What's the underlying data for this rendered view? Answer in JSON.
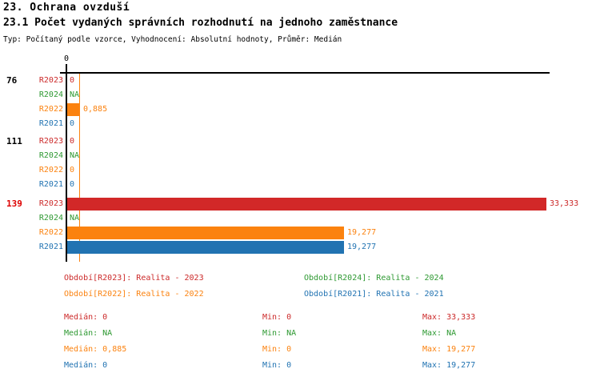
{
  "header": {
    "title": "23. Ochrana ovzduší",
    "subtitle": "23.1 Počet vydaných správních rozhodnutí na jednoho zaměstnance",
    "meta": "Typ: Počítaný podle vzorce, Vyhodnocení: Absolutní hodnoty, Průměr: Medián"
  },
  "colors": {
    "r2023": "#cc2a2a",
    "r2024": "#2e9932",
    "r2022": "#fb820f",
    "r2021": "#2173b2",
    "bar_r2023": "#d22828",
    "bar_r2022": "#fb820f",
    "bar_r2021": "#2173b2",
    "axis": "#000000",
    "median_line": "#fb820f",
    "group_label_default": "#000000",
    "group_label_highlight": "#dd0000"
  },
  "chart_data": {
    "type": "bar",
    "orientation": "horizontal",
    "title": "23.1 Počet vydaných správních rozhodnutí na jednoho zaměstnance",
    "xlabel": "",
    "ylabel": "",
    "xlim": [
      0,
      33.7
    ],
    "axis_tick": "0",
    "grid": false,
    "median_line_value": 0.885,
    "series_order": [
      "R2023",
      "R2024",
      "R2022",
      "R2021"
    ],
    "groups": [
      {
        "group_label": "76",
        "highlight": false,
        "bars": [
          {
            "series": "R2023",
            "value": 0,
            "display": "0"
          },
          {
            "series": "R2024",
            "value": null,
            "display": "NA"
          },
          {
            "series": "R2022",
            "value": 0.885,
            "display": "0,885"
          },
          {
            "series": "R2021",
            "value": 0,
            "display": "0"
          }
        ]
      },
      {
        "group_label": "111",
        "highlight": false,
        "bars": [
          {
            "series": "R2023",
            "value": 0,
            "display": "0"
          },
          {
            "series": "R2024",
            "value": null,
            "display": "NA"
          },
          {
            "series": "R2022",
            "value": 0,
            "display": "0"
          },
          {
            "series": "R2021",
            "value": 0,
            "display": "0"
          }
        ]
      },
      {
        "group_label": "139",
        "highlight": true,
        "bars": [
          {
            "series": "R2023",
            "value": 33.333,
            "display": "33,333"
          },
          {
            "series": "R2024",
            "value": null,
            "display": "NA"
          },
          {
            "series": "R2022",
            "value": 19.277,
            "display": "19,277"
          },
          {
            "series": "R2021",
            "value": 19.277,
            "display": "19,277"
          }
        ]
      }
    ]
  },
  "legend": [
    {
      "series": "R2023",
      "text": "Období[R2023]: Realita - 2023"
    },
    {
      "series": "R2024",
      "text": "Období[R2024]: Realita - 2024"
    },
    {
      "series": "R2022",
      "text": "Období[R2022]: Realita - 2022"
    },
    {
      "series": "R2021",
      "text": "Období[R2021]: Realita - 2021"
    }
  ],
  "stats_labels": {
    "median": "Medián:",
    "min": "Min:",
    "max": "Max:"
  },
  "stats": [
    {
      "series": "R2023",
      "median": "0",
      "min": "0",
      "max": "33,333"
    },
    {
      "series": "R2024",
      "median": "NA",
      "min": "NA",
      "max": "NA"
    },
    {
      "series": "R2022",
      "median": "0,885",
      "min": "0",
      "max": "19,277"
    },
    {
      "series": "R2021",
      "median": "0",
      "min": "0",
      "max": "19,277"
    }
  ]
}
